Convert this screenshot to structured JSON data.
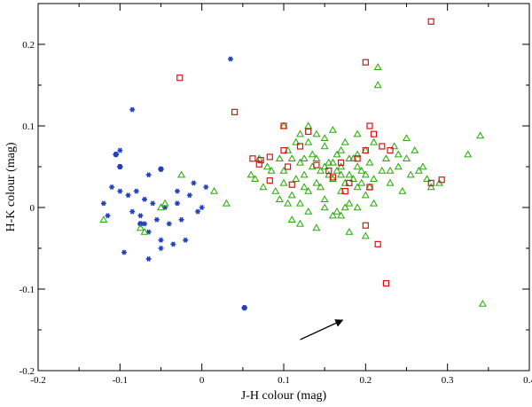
{
  "chart_data": {
    "type": "scatter",
    "title": "",
    "xlabel": "J-H colour (mag)",
    "ylabel": "H-K colour (mag)",
    "xlim": [
      -0.2,
      0.4
    ],
    "ylim": [
      -0.2,
      0.25
    ],
    "x_ticks": [
      -0.2,
      -0.1,
      0,
      0.1,
      0.2,
      0.3,
      0.4
    ],
    "x_tick_labels": [
      "-0.2",
      "-0.1",
      "0",
      "0.1",
      "0.2",
      "0.3",
      "0.4"
    ],
    "y_ticks": [
      -0.2,
      -0.1,
      0,
      0.1,
      0.2
    ],
    "y_tick_labels": [
      "-0.2",
      "-0.1",
      "0",
      "0.1",
      "0.2"
    ],
    "grid": false,
    "colors": {
      "stars": "#1f3fbf",
      "triangles": "#22aa00",
      "squares": "#dd1111",
      "arrow": "#000000"
    },
    "series": [
      {
        "marker": "star",
        "color": "#1f3fbf",
        "points": [
          [
            -0.12,
            0.005
          ],
          [
            -0.115,
            -0.01
          ],
          [
            -0.105,
            0.065
          ],
          [
            -0.1,
            0.07
          ],
          [
            -0.11,
            0.025
          ],
          [
            -0.1,
            0.02
          ],
          [
            -0.095,
            -0.055
          ],
          [
            -0.09,
            0.015
          ],
          [
            -0.085,
            -0.005
          ],
          [
            -0.08,
            0.02
          ],
          [
            -0.075,
            -0.01
          ],
          [
            -0.07,
            -0.02
          ],
          [
            -0.065,
            -0.03
          ],
          [
            -0.06,
            0.005
          ],
          [
            -0.055,
            -0.015
          ],
          [
            -0.05,
            -0.04
          ],
          [
            -0.045,
            0.0
          ],
          [
            -0.04,
            -0.02
          ],
          [
            -0.035,
            -0.045
          ],
          [
            -0.03,
            0.005
          ],
          [
            -0.03,
            0.02
          ],
          [
            -0.025,
            -0.015
          ],
          [
            -0.02,
            -0.04
          ],
          [
            -0.015,
            0.015
          ],
          [
            -0.01,
            0.03
          ],
          [
            -0.005,
            -0.005
          ],
          [
            0.0,
            0.0
          ],
          [
            0.005,
            0.025
          ],
          [
            0.035,
            0.182
          ],
          [
            -0.085,
            0.12
          ],
          [
            -0.065,
            -0.063
          ],
          [
            -0.05,
            -0.05
          ],
          [
            -0.065,
            0.04
          ],
          [
            -0.07,
            0.01
          ]
        ]
      },
      {
        "marker": "hexagon",
        "color": "#1f3fbf",
        "points": [
          [
            -0.105,
            0.065
          ],
          [
            -0.1,
            0.05
          ],
          [
            -0.05,
            0.047
          ],
          [
            0.052,
            -0.123
          ],
          [
            -0.075,
            -0.02
          ]
        ]
      },
      {
        "marker": "triangle",
        "color": "#22aa00",
        "points": [
          [
            -0.12,
            -0.015
          ],
          [
            -0.075,
            -0.025
          ],
          [
            -0.07,
            -0.03
          ],
          [
            -0.05,
            0.0
          ],
          [
            -0.045,
            0.005
          ],
          [
            -0.025,
            0.04
          ],
          [
            0.015,
            0.02
          ],
          [
            0.03,
            0.005
          ],
          [
            0.06,
            0.04
          ],
          [
            0.065,
            0.035
          ],
          [
            0.07,
            0.06
          ],
          [
            0.075,
            0.025
          ],
          [
            0.08,
            0.05
          ],
          [
            0.085,
            0.045
          ],
          [
            0.09,
            0.02
          ],
          [
            0.095,
            0.06
          ],
          [
            0.1,
            0.1
          ],
          [
            0.1,
            0.03
          ],
          [
            0.105,
            0.07
          ],
          [
            0.11,
            0.015
          ],
          [
            0.115,
            0.08
          ],
          [
            0.12,
            0.005
          ],
          [
            0.12,
            0.055
          ],
          [
            0.125,
            0.04
          ],
          [
            0.13,
            0.1
          ],
          [
            0.13,
            0.02
          ],
          [
            0.135,
            0.065
          ],
          [
            0.14,
            0.03
          ],
          [
            0.14,
            0.09
          ],
          [
            0.145,
            0.045
          ],
          [
            0.15,
            0.075
          ],
          [
            0.15,
            0.01
          ],
          [
            0.155,
            0.055
          ],
          [
            0.16,
            0.035
          ],
          [
            0.16,
            0.095
          ],
          [
            0.165,
            0.065
          ],
          [
            0.17,
            0.02
          ],
          [
            0.17,
            0.05
          ],
          [
            0.175,
            0.08
          ],
          [
            0.18,
            0.04
          ],
          [
            0.18,
            0.005
          ],
          [
            0.185,
            0.06
          ],
          [
            0.19,
            0.025
          ],
          [
            0.19,
            0.09
          ],
          [
            0.195,
            0.045
          ],
          [
            0.2,
            0.07
          ],
          [
            0.2,
            0.015
          ],
          [
            0.205,
            0.055
          ],
          [
            0.21,
            0.035
          ],
          [
            0.21,
            0.08
          ],
          [
            0.215,
            0.172
          ],
          [
            0.215,
            0.15
          ],
          [
            0.22,
            0.045
          ],
          [
            0.225,
            0.06
          ],
          [
            0.23,
            0.03
          ],
          [
            0.235,
            0.075
          ],
          [
            0.24,
            0.05
          ],
          [
            0.245,
            0.02
          ],
          [
            0.25,
            0.06
          ],
          [
            0.255,
            0.04
          ],
          [
            0.26,
            0.07
          ],
          [
            0.27,
            0.05
          ],
          [
            0.275,
            0.035
          ],
          [
            0.28,
            0.025
          ],
          [
            0.29,
            0.03
          ],
          [
            0.325,
            0.065
          ],
          [
            0.34,
            0.088
          ],
          [
            0.343,
            -0.118
          ],
          [
            0.11,
            -0.015
          ],
          [
            0.12,
            -0.02
          ],
          [
            0.13,
            -0.005
          ],
          [
            0.14,
            -0.025
          ],
          [
            0.15,
            0.0
          ],
          [
            0.16,
            -0.01
          ],
          [
            0.165,
            -0.005
          ],
          [
            0.17,
            -0.01
          ],
          [
            0.175,
            0.0
          ],
          [
            0.18,
            -0.03
          ],
          [
            0.19,
            0.0
          ],
          [
            0.2,
            -0.035
          ],
          [
            0.21,
            0.005
          ],
          [
            0.1,
            0.045
          ],
          [
            0.115,
            0.035
          ],
          [
            0.125,
            0.06
          ],
          [
            0.135,
            0.05
          ],
          [
            0.145,
            0.025
          ],
          [
            0.155,
            0.04
          ],
          [
            0.165,
            0.045
          ],
          [
            0.175,
            0.03
          ],
          [
            0.185,
            0.035
          ],
          [
            0.195,
            0.03
          ],
          [
            0.205,
            0.025
          ],
          [
            0.125,
            0.025
          ],
          [
            0.14,
            0.06
          ],
          [
            0.15,
            0.05
          ],
          [
            0.16,
            0.055
          ],
          [
            0.17,
            0.04
          ],
          [
            0.18,
            0.06
          ],
          [
            0.19,
            0.05
          ],
          [
            0.2,
            0.04
          ],
          [
            0.11,
            0.06
          ],
          [
            0.12,
            0.09
          ],
          [
            0.13,
            0.08
          ],
          [
            0.15,
            0.085
          ],
          [
            0.17,
            0.07
          ],
          [
            0.19,
            0.065
          ],
          [
            0.095,
            0.01
          ],
          [
            0.105,
            0.005
          ],
          [
            0.23,
            0.045
          ],
          [
            0.24,
            0.065
          ],
          [
            0.25,
            0.085
          ],
          [
            0.265,
            0.045
          ]
        ]
      },
      {
        "marker": "square",
        "color": "#dd1111",
        "points": [
          [
            -0.027,
            0.159
          ],
          [
            0.04,
            0.117
          ],
          [
            0.062,
            0.06
          ],
          [
            0.07,
            0.053
          ],
          [
            0.072,
            0.058
          ],
          [
            0.083,
            0.062
          ],
          [
            0.083,
            0.033
          ],
          [
            0.1,
            0.1
          ],
          [
            0.1,
            0.07
          ],
          [
            0.105,
            0.05
          ],
          [
            0.11,
            0.028
          ],
          [
            0.12,
            0.075
          ],
          [
            0.13,
            0.093
          ],
          [
            0.14,
            0.052
          ],
          [
            0.155,
            0.045
          ],
          [
            0.16,
            0.037
          ],
          [
            0.17,
            0.055
          ],
          [
            0.175,
            0.02
          ],
          [
            0.18,
            0.03
          ],
          [
            0.19,
            0.06
          ],
          [
            0.2,
            0.178
          ],
          [
            0.2,
            0.07
          ],
          [
            0.205,
            0.1
          ],
          [
            0.205,
            0.025
          ],
          [
            0.21,
            0.09
          ],
          [
            0.2,
            -0.022
          ],
          [
            0.215,
            -0.045
          ],
          [
            0.22,
            0.075
          ],
          [
            0.225,
            -0.093
          ],
          [
            0.23,
            0.07
          ],
          [
            0.28,
            0.228
          ],
          [
            0.28,
            0.03
          ],
          [
            0.293,
            0.034
          ]
        ]
      }
    ],
    "annotations": [
      {
        "type": "arrow",
        "from": [
          0.12,
          -0.162
        ],
        "to": [
          0.172,
          -0.138
        ]
      }
    ]
  }
}
